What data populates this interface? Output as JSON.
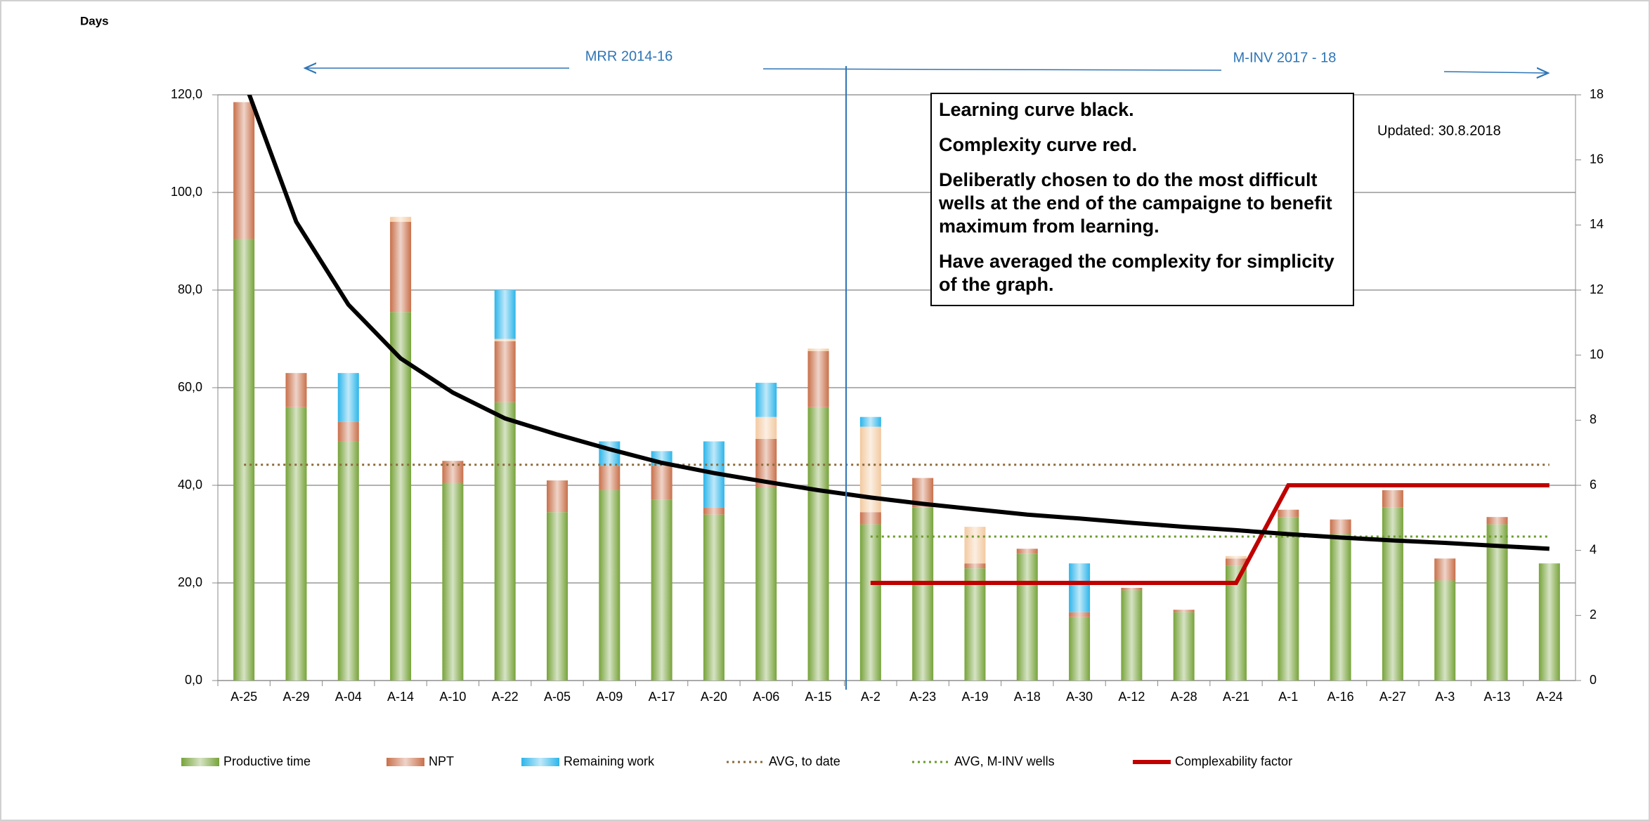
{
  "chart_data": {
    "type": "bar",
    "y_label": "Days",
    "annotations": [
      "MRR 2014-16",
      "M-INV 2017 - 18",
      "Updated: 30.8.2018"
    ],
    "note": [
      "Learning curve black.",
      "Complexity curve red.",
      "Deliberatly chosen to do the most difficult wells at the end of the campaigne to benefit maximum from learning.",
      "Have averaged the complexity for simplicity of the graph."
    ],
    "categories": [
      "A-25",
      "A-29",
      "A-04",
      "A-14",
      "A-10",
      "A-22",
      "A-05",
      "A-09",
      "A-17",
      "A-20",
      "A-06",
      "A-15",
      "A-2",
      "A-23",
      "A-19",
      "A-18",
      "A-30",
      "A-12",
      "A-28",
      "A-21",
      "A-1",
      "A-16",
      "A-27",
      "A-3",
      "A-13",
      "A-24"
    ],
    "ylim": [
      0,
      120
    ],
    "yticks": [
      {
        "value": 0,
        "label": "0,0"
      },
      {
        "value": 20,
        "label": "20,0"
      },
      {
        "value": 40,
        "label": "40,0"
      },
      {
        "value": 60,
        "label": "60,0"
      },
      {
        "value": 80,
        "label": "80,0"
      },
      {
        "value": 100,
        "label": "100,0"
      },
      {
        "value": 120,
        "label": "120,0"
      }
    ],
    "y2lim": [
      0,
      18
    ],
    "y2ticks": [
      0,
      2,
      4,
      6,
      8,
      10,
      12,
      14,
      16,
      18
    ],
    "grid": true,
    "series": [
      {
        "name": "Productive time",
        "type": "bar",
        "color": "#77a33a",
        "values": [
          90.5,
          56,
          49,
          75.5,
          40.5,
          57,
          34.5,
          39,
          37,
          34,
          39.5,
          56,
          32,
          35.5,
          23,
          26,
          13,
          18.5,
          14,
          23.5,
          33.5,
          30,
          35.5,
          20.5,
          32,
          24
        ]
      },
      {
        "name": "NPT",
        "type": "bar",
        "color": "#c8704a",
        "values": [
          28,
          7,
          4,
          18.5,
          4.5,
          12.5,
          6.5,
          5,
          7,
          1.5,
          10,
          11.5,
          2.5,
          6,
          1,
          1,
          1,
          0.5,
          0.5,
          1.5,
          1.5,
          3,
          3.5,
          4.5,
          1.5,
          null
        ]
      },
      {
        "type": "bar",
        "color": "#f3c9a0",
        "values": [
          null,
          null,
          null,
          1,
          null,
          0.5,
          null,
          null,
          null,
          null,
          4.5,
          0.5,
          17.5,
          null,
          7.5,
          null,
          null,
          null,
          null,
          0.5,
          null,
          null,
          null,
          null,
          null,
          null
        ]
      },
      {
        "name": "Remaining work",
        "type": "bar",
        "color": "#2cb5ea",
        "values": [
          null,
          null,
          10,
          null,
          null,
          10,
          null,
          5,
          3,
          13.5,
          7,
          null,
          2,
          null,
          null,
          null,
          10,
          null,
          null,
          null,
          null,
          null,
          null,
          null,
          null,
          null
        ]
      },
      {
        "name": "AVG, to date",
        "type": "line",
        "dash": true,
        "color": "#8b6a3a",
        "values": [
          44.2,
          44.2,
          44.2,
          44.2,
          44.2,
          44.2,
          44.2,
          44.2,
          44.2,
          44.2,
          44.2,
          44.2,
          44.2,
          44.2,
          44.2,
          44.2,
          44.2,
          44.2,
          44.2,
          44.2,
          44.2,
          44.2,
          44.2,
          44.2,
          44.2,
          44.2
        ]
      },
      {
        "name": "AVG, M-INV wells",
        "type": "line",
        "dash": true,
        "color": "#6a9a2a",
        "values": [
          null,
          null,
          null,
          null,
          null,
          null,
          null,
          null,
          null,
          null,
          null,
          null,
          29.5,
          29.5,
          29.5,
          29.5,
          29.5,
          29.5,
          29.5,
          29.5,
          29.5,
          29.5,
          29.5,
          29.5,
          29.5,
          29.5
        ]
      },
      {
        "name": "Complexability factor",
        "type": "line",
        "axis": "y2",
        "color": "#c00000",
        "width": 3,
        "values": [
          null,
          null,
          null,
          null,
          null,
          null,
          null,
          null,
          null,
          null,
          null,
          null,
          3,
          3,
          3,
          3,
          3,
          3,
          3,
          3,
          6,
          6,
          6,
          6,
          6,
          6
        ]
      },
      {
        "type": "line",
        "color": "#000000",
        "width": 3,
        "values": [
          123,
          94,
          77,
          66,
          59,
          53.7,
          50.4,
          47.4,
          44.6,
          42.5,
          40.7,
          39,
          37.5,
          36.2,
          35.1,
          34,
          33.2,
          32.3,
          31.5,
          30.8,
          30,
          29.3,
          28.7,
          28.2,
          27.6,
          27
        ]
      }
    ]
  }
}
